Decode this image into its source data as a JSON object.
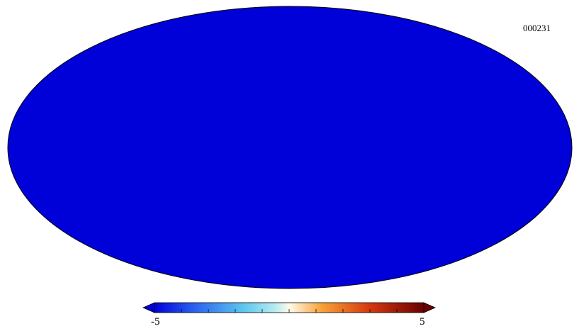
{
  "map": {
    "id_label": "000231",
    "projection": "mollweide",
    "colormap": "planck",
    "colors": {
      "min_end": "#0000d8",
      "blue": "#2a63ef",
      "light_blue": "#5cc6ef",
      "cyan": "#b8ecf0",
      "white": "#fffbe9",
      "orange": "#f8a23a",
      "red": "#d4380e",
      "dark_red": "#6a0000"
    }
  },
  "colorbar": {
    "min_label": "-5",
    "max_label": "5",
    "min_value": -5,
    "max_value": 5,
    "extend": "both",
    "orientation": "horizontal"
  }
}
